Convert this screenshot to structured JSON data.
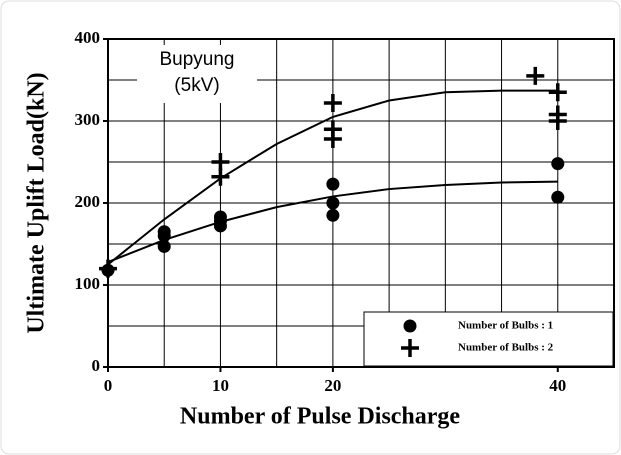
{
  "chart_data": {
    "type": "scatter",
    "x_label": "Number of Pulse Discharge",
    "y_label": "Ultimate Uplift Load(kN)",
    "annotation": [
      "Bupyung",
      "(5kV)"
    ],
    "xlim": [
      0,
      45
    ],
    "xticks": [
      0,
      10,
      20,
      40
    ],
    "ylim": [
      0,
      400
    ],
    "yticks": [
      0,
      100,
      200,
      300,
      400
    ],
    "xgrid": [
      5,
      10,
      15,
      20,
      25,
      30,
      35,
      40
    ],
    "ygrid": [
      50,
      100,
      150,
      200,
      250,
      300,
      350
    ],
    "grid": true,
    "legend": "lower right",
    "series": [
      {
        "name": "Number of Bulbs : 1",
        "marker": "circle",
        "color": "#000000",
        "x": [
          0,
          5,
          5,
          5,
          10,
          10,
          10,
          20,
          20,
          20,
          40,
          40
        ],
        "values": [
          118,
          165,
          160,
          147,
          183,
          178,
          172,
          223,
          200,
          185,
          248,
          207
        ]
      },
      {
        "name": "Number of Bulbs : 2",
        "marker": "cross",
        "color": "#000000",
        "x": [
          0,
          10,
          10,
          20,
          20,
          20,
          38,
          40,
          40,
          40
        ],
        "values": [
          120,
          250,
          232,
          322,
          290,
          278,
          355,
          335,
          308,
          300
        ]
      }
    ],
    "fits": [
      {
        "x": [
          0,
          5,
          10,
          15,
          20,
          25,
          30,
          35,
          40
        ],
        "values": [
          128,
          155,
          177,
          195,
          208,
          217,
          222,
          225,
          226
        ]
      },
      {
        "x": [
          0,
          5,
          10,
          15,
          20,
          25,
          30,
          35,
          40
        ],
        "values": [
          125,
          180,
          230,
          272,
          305,
          325,
          335,
          337,
          337
        ]
      }
    ]
  }
}
